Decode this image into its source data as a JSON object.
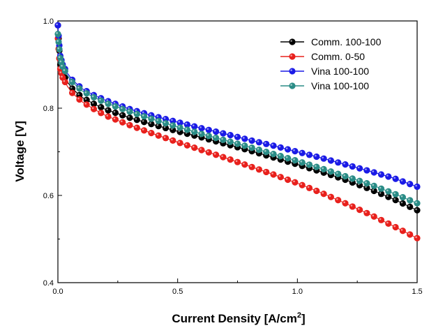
{
  "chart_data": {
    "type": "line",
    "xlabel_main": "Current Density [A/cm",
    "xlabel_sup": "2",
    "xlabel_end": "]",
    "ylabel": "Voltage [V]",
    "xlim": [
      0.0,
      1.5
    ],
    "ylim": [
      0.4,
      1.0
    ],
    "x_ticks": [
      0.0,
      0.5,
      1.0,
      1.5
    ],
    "x_tick_labels": [
      "0.0",
      "0.5",
      "1.0",
      "1.5"
    ],
    "y_ticks": [
      0.4,
      0.6,
      0.8,
      1.0
    ],
    "y_tick_labels": [
      "0.4",
      "0.6",
      "0.8",
      "1.0"
    ],
    "grid": false,
    "legend_position": "top-right",
    "series": [
      {
        "name": "Comm. 100-100",
        "color": "#000000",
        "x": [
          0.0,
          0.005,
          0.01,
          0.02,
          0.04,
          0.06,
          0.08,
          0.1,
          0.15,
          0.2,
          0.3,
          0.4,
          0.5,
          0.6,
          0.7,
          0.8,
          0.9,
          1.0,
          1.1,
          1.2,
          1.3,
          1.4,
          1.5
        ],
        "y": [
          0.99,
          0.94,
          0.9,
          0.88,
          0.86,
          0.845,
          0.835,
          0.825,
          0.81,
          0.797,
          0.778,
          0.762,
          0.747,
          0.733,
          0.718,
          0.703,
          0.687,
          0.671,
          0.654,
          0.636,
          0.615,
          0.592,
          0.566
        ]
      },
      {
        "name": "Comm. 0-50",
        "color": "#e8201c",
        "x": [
          0.0,
          0.005,
          0.01,
          0.02,
          0.04,
          0.06,
          0.08,
          0.1,
          0.15,
          0.2,
          0.3,
          0.4,
          0.5,
          0.6,
          0.7,
          0.8,
          0.9,
          1.0,
          1.1,
          1.2,
          1.3,
          1.4,
          1.5
        ],
        "y": [
          0.96,
          0.92,
          0.89,
          0.87,
          0.85,
          0.835,
          0.825,
          0.815,
          0.798,
          0.783,
          0.761,
          0.741,
          0.722,
          0.704,
          0.686,
          0.667,
          0.648,
          0.628,
          0.606,
          0.582,
          0.557,
          0.53,
          0.502
        ]
      },
      {
        "name": "Vina 100-100",
        "color": "#1a1ae6",
        "x": [
          0.0,
          0.005,
          0.01,
          0.02,
          0.04,
          0.06,
          0.08,
          0.1,
          0.15,
          0.2,
          0.3,
          0.4,
          0.5,
          0.6,
          0.7,
          0.8,
          0.9,
          1.0,
          1.1,
          1.2,
          1.3,
          1.4,
          1.5
        ],
        "y": [
          0.99,
          0.95,
          0.92,
          0.9,
          0.88,
          0.865,
          0.855,
          0.845,
          0.83,
          0.818,
          0.798,
          0.782,
          0.768,
          0.754,
          0.741,
          0.727,
          0.714,
          0.7,
          0.686,
          0.671,
          0.656,
          0.64,
          0.62
        ]
      },
      {
        "name": "Vina 100-100",
        "color": "#2a8c86",
        "x": [
          0.0,
          0.005,
          0.01,
          0.02,
          0.04,
          0.06,
          0.08,
          0.1,
          0.15,
          0.2,
          0.3,
          0.4,
          0.5,
          0.6,
          0.7,
          0.8,
          0.9,
          1.0,
          1.1,
          1.2,
          1.3,
          1.4,
          1.5
        ],
        "y": [
          0.97,
          0.94,
          0.915,
          0.895,
          0.875,
          0.86,
          0.85,
          0.84,
          0.825,
          0.812,
          0.792,
          0.774,
          0.757,
          0.741,
          0.726,
          0.711,
          0.695,
          0.679,
          0.662,
          0.644,
          0.626,
          0.605,
          0.582
        ]
      }
    ]
  }
}
